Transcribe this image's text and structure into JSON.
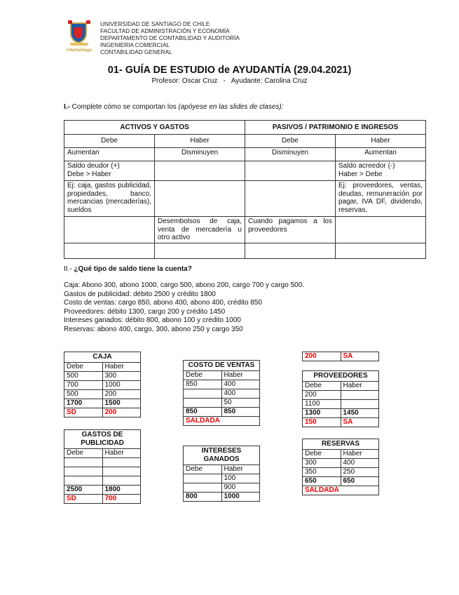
{
  "header": {
    "logo_text": "UdeSantiago",
    "lines": [
      "UNIVERSIDAD DE SANTIAGO DE CHILE",
      "FACULTAD DE ADMINISTRACIÓN Y ECONOMÍA",
      "DEPARTAMENTO DE CONTABILIDAD Y AUDITORÍA",
      "INGENIERIA COMERCIAL",
      "CONTABILIDAD GENERAL"
    ]
  },
  "title": "01- GUÍA DE ESTUDIO de AYUDANTÍA (29.04.2021)",
  "subtitle": "Profesor: Oscar Cruz   -   Ayudante: Carolina Cruz",
  "section1": {
    "num": "I.-",
    "text": " Complete cómo se comportan los ",
    "italic": "(apóyese en las slides de clases):"
  },
  "table1": {
    "groups": [
      "ACTIVOS Y GASTOS",
      "PASIVOS / PATRIMONIO E INGRESOS"
    ],
    "cols": [
      "Debe",
      "Haber",
      "Debe",
      "Haber"
    ],
    "rows": [
      [
        "Aumentan",
        "Disminuyen",
        "Disminuyen",
        "Aumentan"
      ],
      [
        "Saldo deudor (+)\nDebe > Haber",
        "",
        "",
        "Saldo acreedor (-)\nHaber > Debe"
      ],
      [
        "Ej: caja, gastos publicidad, propiedades, banco, mercancias (mercaderías), sueldos",
        "",
        "",
        "Ej: proveedores, ventas, deudas, remuneración por pagar, IVA DF, dividendo, reservas,"
      ],
      [
        "",
        "Desembolsos de caja, venta de mercadería u otro activo",
        "Cuando pagamos a los proveedores",
        ""
      ],
      [
        "",
        "",
        "",
        ""
      ]
    ]
  },
  "section2": {
    "num": "II.- ",
    "question": "¿Qué tipo de saldo tiene la cuenta?"
  },
  "statements": [
    "Caja: Abono 300, abono 1000, cargo 500, abono 200, cargo 700 y cargo 500.",
    "Gastos de publicidad: débito 2500 y crédito 1800",
    "Costo de ventas: cargo 850, abono 400, abono 400, crédito 850",
    "Proveedores: débito 1300, cargo 200 y crédito 1450",
    "Intereses ganados: débito 800, abono 100 y crédito 1000",
    "Reservas: abono 400, cargo, 300, abono 250 y cargo 350"
  ],
  "accounts": [
    {
      "id": "caja",
      "title": "CAJA",
      "rows": [
        [
          "Debe",
          "Haber",
          ""
        ],
        [
          "500",
          "300",
          ""
        ],
        [
          "700",
          "1000",
          ""
        ],
        [
          "500",
          "200",
          ""
        ],
        [
          "1700",
          "1500",
          "b"
        ],
        [
          "SD",
          "200",
          "red"
        ]
      ]
    },
    {
      "id": "gastos-publicidad",
      "title": "GASTOS DE PUBLICIDAD",
      "rows": [
        [
          "Debe",
          "Haber",
          ""
        ],
        [
          "",
          "",
          ""
        ],
        [
          "",
          "",
          ""
        ],
        [
          "",
          "",
          ""
        ],
        [
          "2500",
          "1800",
          "b"
        ],
        [
          "SD",
          "700",
          "red"
        ]
      ]
    },
    {
      "id": "costo-ventas",
      "title": "COSTO DE VENTAS",
      "rows": [
        [
          "Debe",
          "Haber",
          ""
        ],
        [
          "850",
          "400",
          ""
        ],
        [
          "",
          "400",
          ""
        ],
        [
          "",
          "50",
          ""
        ],
        [
          "850",
          "850",
          "b"
        ]
      ],
      "footer": "SALDADA"
    },
    {
      "id": "intereses-ganados",
      "title": "INTERESES GANADOS",
      "rows": [
        [
          "Debe",
          "Haber",
          ""
        ],
        [
          "",
          "100",
          ""
        ],
        [
          "",
          "900",
          ""
        ],
        [
          "800",
          "1000",
          "b"
        ]
      ]
    },
    {
      "id": "fragment",
      "title": "",
      "rows": [
        [
          "200",
          "SA",
          "red"
        ]
      ]
    },
    {
      "id": "proveedores",
      "title": "PROVEEDORES",
      "rows": [
        [
          "Debe",
          "Haber",
          ""
        ],
        [
          "200",
          "",
          ""
        ],
        [
          "1100",
          "",
          ""
        ],
        [
          "1300",
          "1450",
          "b"
        ],
        [
          "150",
          "SA",
          "red"
        ]
      ]
    },
    {
      "id": "reservas",
      "title": "RESERVAS",
      "rows": [
        [
          "Debe",
          "Haber",
          ""
        ],
        [
          "300",
          "400",
          ""
        ],
        [
          "350",
          "250",
          ""
        ],
        [
          "650",
          "650",
          "b"
        ]
      ],
      "footer": "SALDADA"
    }
  ]
}
